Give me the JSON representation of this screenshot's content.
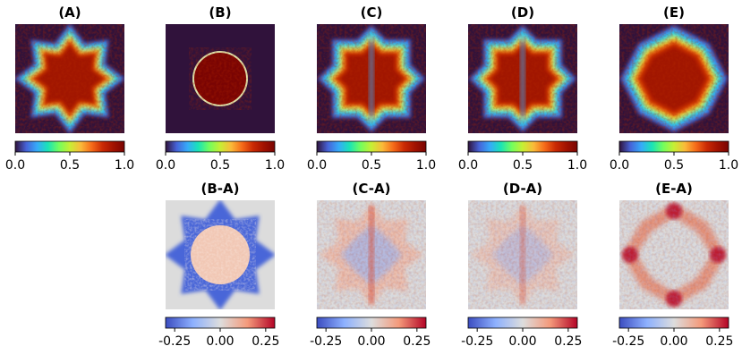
{
  "chart_data": [
    {
      "type": "heatmap",
      "title": "(A)",
      "colormap": "turbo",
      "shape": "cross-octagon",
      "colorbar": {
        "ticks": [
          "0.0",
          "0.5",
          "1.0"
        ],
        "range": [
          0.0,
          1.0
        ]
      }
    },
    {
      "type": "heatmap",
      "title": "(B)",
      "colormap": "turbo",
      "shape": "small-blob",
      "colorbar": {
        "ticks": [
          "0.0",
          "0.5",
          "1.0"
        ],
        "range": [
          0.0,
          1.0
        ]
      }
    },
    {
      "type": "heatmap",
      "title": "(C)",
      "colormap": "turbo",
      "shape": "cross-square",
      "colorbar": {
        "ticks": [
          "0.0",
          "0.5",
          "1.0"
        ],
        "range": [
          0.0,
          1.0
        ]
      }
    },
    {
      "type": "heatmap",
      "title": "(D)",
      "colormap": "turbo",
      "shape": "cross-square",
      "colorbar": {
        "ticks": [
          "0.0",
          "0.5",
          "1.0"
        ],
        "range": [
          0.0,
          1.0
        ]
      }
    },
    {
      "type": "heatmap",
      "title": "(E)",
      "colormap": "turbo",
      "shape": "diamond",
      "colorbar": {
        "ticks": [
          "0.0",
          "0.5",
          "1.0"
        ],
        "range": [
          0.0,
          1.0
        ]
      }
    },
    {
      "type": "heatmap",
      "title": "(B-A)",
      "colormap": "coolwarm",
      "shape": "diff-blue-ring",
      "colorbar": {
        "ticks": [
          "-0.25",
          "0.00",
          "0.25"
        ],
        "range": [
          -0.3,
          0.3
        ]
      }
    },
    {
      "type": "heatmap",
      "title": "(C-A)",
      "colormap": "coolwarm",
      "shape": "diff-mixed",
      "colorbar": {
        "ticks": [
          "-0.25",
          "0.00",
          "0.25"
        ],
        "range": [
          -0.3,
          0.3
        ]
      }
    },
    {
      "type": "heatmap",
      "title": "(D-A)",
      "colormap": "coolwarm",
      "shape": "diff-mixed-light",
      "colorbar": {
        "ticks": [
          "-0.25",
          "0.00",
          "0.25"
        ],
        "range": [
          -0.3,
          0.3
        ]
      }
    },
    {
      "type": "heatmap",
      "title": "(E-A)",
      "colormap": "coolwarm",
      "shape": "diff-red-diamond",
      "colorbar": {
        "ticks": [
          "-0.25",
          "0.00",
          "0.25"
        ],
        "range": [
          -0.3,
          0.3
        ]
      }
    }
  ],
  "colors": {
    "background_dark": "#30123b",
    "diff_neutral": "#dcdcdc"
  }
}
